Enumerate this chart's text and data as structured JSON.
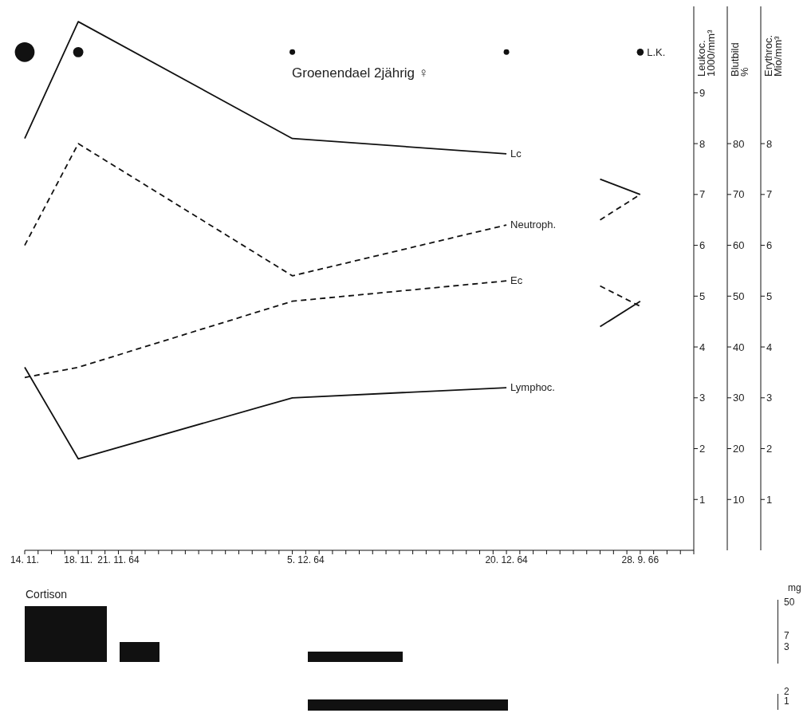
{
  "chart_data": [
    {
      "type": "line",
      "title": "Groenendael 2jährig ♀",
      "ylabel": "Leukoc. 1000/mm³",
      "y2label": "Blutbild %",
      "y3label": "Erythroc. Mio/mm³",
      "categories": [
        "14. 11.",
        null,
        null,
        null,
        "18. 11.",
        null,
        null,
        "21. 11. 64",
        null,
        null,
        null,
        null,
        null,
        null,
        null,
        null,
        null,
        null,
        null,
        null,
        null,
        "5. 12. 64",
        null,
        null,
        null,
        null,
        null,
        null,
        null,
        null,
        null,
        null,
        null,
        null,
        null,
        null,
        "20. 12. 64",
        null,
        null,
        null,
        null,
        null,
        null,
        null,
        null,
        null,
        "28. 9. 66",
        null,
        null,
        null,
        null
      ],
      "ylim": [
        0,
        10.7
      ],
      "yticks": [
        1,
        2,
        3,
        4,
        5,
        6,
        7,
        8,
        9
      ],
      "y2lim": [
        0,
        107
      ],
      "y2ticks": [
        10,
        20,
        30,
        40,
        50,
        60,
        70,
        80
      ],
      "y3lim": [
        0,
        10.7
      ],
      "y3ticks": [
        1,
        2,
        3,
        4,
        5,
        6,
        7,
        8
      ],
      "series": [
        {
          "name": "Lc",
          "color": "#111111",
          "line_style": "solid",
          "values": [
            8.1,
            null,
            null,
            null,
            10.4,
            null,
            null,
            null,
            null,
            null,
            null,
            null,
            null,
            null,
            null,
            null,
            null,
            null,
            null,
            null,
            8.1,
            null,
            null,
            null,
            null,
            null,
            null,
            null,
            null,
            null,
            null,
            null,
            null,
            null,
            null,
            null,
            7.8,
            null,
            null,
            null,
            null,
            null,
            null,
            null,
            null,
            null,
            null,
            null,
            null,
            null,
            null
          ]
        },
        {
          "name": "Neutroph.",
          "color": "#111111",
          "line_style": "dashed",
          "axis": "y2",
          "values": [
            60,
            null,
            null,
            null,
            80,
            null,
            null,
            null,
            null,
            null,
            null,
            null,
            null,
            null,
            null,
            null,
            null,
            null,
            null,
            null,
            54,
            null,
            null,
            null,
            null,
            null,
            null,
            null,
            null,
            null,
            null,
            null,
            null,
            null,
            null,
            null,
            64,
            null,
            null,
            null,
            null,
            null,
            null,
            null,
            null,
            null,
            null,
            null,
            null,
            null,
            null
          ]
        },
        {
          "name": "Ec",
          "color": "#111111",
          "line_style": "dashed",
          "axis": "y3",
          "values": [
            3.4,
            null,
            null,
            null,
            3.6,
            null,
            null,
            null,
            null,
            null,
            null,
            null,
            null,
            null,
            null,
            null,
            null,
            null,
            null,
            null,
            4.9,
            null,
            null,
            null,
            null,
            null,
            null,
            null,
            null,
            null,
            null,
            null,
            null,
            null,
            null,
            null,
            5.3,
            null,
            null,
            null,
            null,
            null,
            null,
            null,
            null,
            null,
            null,
            null,
            null,
            null,
            null
          ]
        },
        {
          "name": "Lymphoc.",
          "color": "#111111",
          "line_style": "solid",
          "axis": "y2",
          "values": [
            36,
            null,
            null,
            null,
            18,
            null,
            null,
            null,
            null,
            null,
            null,
            null,
            null,
            null,
            null,
            null,
            null,
            null,
            null,
            null,
            30,
            null,
            null,
            null,
            null,
            null,
            null,
            null,
            null,
            null,
            null,
            null,
            null,
            null,
            null,
            null,
            32,
            null,
            null,
            null,
            null,
            null,
            null,
            null,
            null,
            null,
            null,
            null,
            null,
            null,
            null
          ]
        },
        {
          "color": "#111111",
          "line_style": "solid",
          "values": [
            null,
            null,
            null,
            null,
            null,
            null,
            null,
            null,
            null,
            null,
            null,
            null,
            null,
            null,
            null,
            null,
            null,
            null,
            null,
            null,
            null,
            null,
            null,
            null,
            null,
            null,
            null,
            null,
            null,
            null,
            null,
            null,
            null,
            null,
            null,
            null,
            null,
            null,
            null,
            null,
            null,
            null,
            null,
            7.3,
            null,
            null,
            7.0,
            null,
            null,
            null,
            null
          ]
        },
        {
          "color": "#111111",
          "line_style": "dashed",
          "axis": "y2",
          "values": [
            null,
            null,
            null,
            null,
            null,
            null,
            null,
            null,
            null,
            null,
            null,
            null,
            null,
            null,
            null,
            null,
            null,
            null,
            null,
            null,
            null,
            null,
            null,
            null,
            null,
            null,
            null,
            null,
            null,
            null,
            null,
            null,
            null,
            null,
            null,
            null,
            null,
            null,
            null,
            null,
            null,
            null,
            null,
            65,
            null,
            null,
            70,
            null,
            null,
            null,
            null
          ]
        },
        {
          "color": "#111111",
          "line_style": "solid",
          "axis": "y2",
          "values": [
            null,
            null,
            null,
            null,
            null,
            null,
            null,
            null,
            null,
            null,
            null,
            null,
            null,
            null,
            null,
            null,
            null,
            null,
            null,
            null,
            null,
            null,
            null,
            null,
            null,
            null,
            null,
            null,
            null,
            null,
            null,
            null,
            null,
            null,
            null,
            null,
            null,
            null,
            null,
            null,
            null,
            null,
            null,
            44,
            null,
            null,
            49,
            null,
            null,
            null,
            null
          ]
        },
        {
          "color": "#111111",
          "line_style": "dashed",
          "axis": "y3",
          "values": [
            null,
            null,
            null,
            null,
            null,
            null,
            null,
            null,
            null,
            null,
            null,
            null,
            null,
            null,
            null,
            null,
            null,
            null,
            null,
            null,
            null,
            null,
            null,
            null,
            null,
            null,
            null,
            null,
            null,
            null,
            null,
            null,
            null,
            null,
            null,
            null,
            null,
            null,
            null,
            null,
            null,
            null,
            null,
            5.2,
            null,
            null,
            4.8,
            null,
            null,
            null,
            null
          ]
        },
        {
          "name": "L.K.",
          "type": "bubble",
          "color": "#111111",
          "values": [
            9.8,
            null,
            null,
            null,
            9.8,
            null,
            null,
            null,
            null,
            null,
            null,
            null,
            null,
            null,
            null,
            null,
            null,
            null,
            null,
            null,
            9.8,
            null,
            null,
            null,
            null,
            null,
            null,
            null,
            null,
            null,
            null,
            null,
            null,
            null,
            null,
            null,
            9.8,
            null,
            null,
            null,
            null,
            null,
            null,
            null,
            null,
            null,
            9.8,
            null,
            null,
            null,
            null
          ],
          "sizes": [
            1,
            null,
            null,
            null,
            0.27,
            null,
            null,
            null,
            null,
            null,
            null,
            null,
            null,
            null,
            null,
            null,
            null,
            null,
            null,
            null,
            0.08,
            null,
            null,
            null,
            null,
            null,
            null,
            null,
            null,
            null,
            null,
            null,
            null,
            null,
            null,
            null,
            0.08,
            null,
            null,
            null,
            null,
            null,
            null,
            null,
            null,
            null,
            0.12,
            null,
            null,
            null,
            null
          ]
        }
      ]
    },
    {
      "type": "other",
      "annotations": [
        "Cortison",
        "mg",
        "50",
        "7",
        "3",
        "2",
        "1"
      ]
    }
  ]
}
